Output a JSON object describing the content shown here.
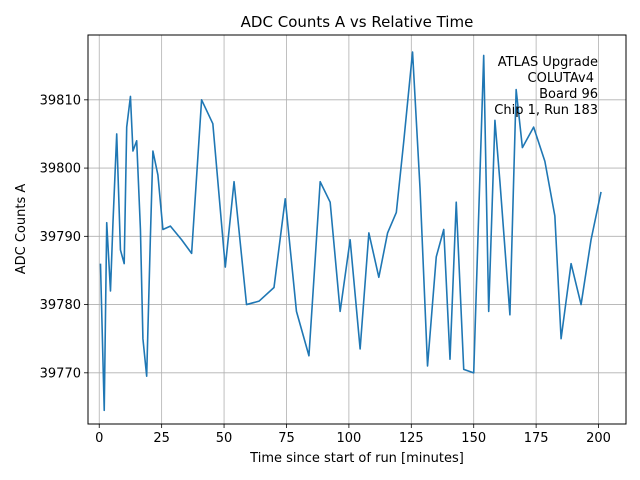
{
  "chart_data": {
    "type": "line",
    "title": "ADC Counts A vs Relative Time",
    "xlabel": "Time since start of run [minutes]",
    "ylabel": "ADC Counts A",
    "xlim": [
      -4.5,
      211
    ],
    "ylim": [
      39762.5,
      39819.5
    ],
    "xticks": [
      0,
      25,
      50,
      75,
      100,
      125,
      150,
      175,
      200
    ],
    "yticks": [
      39770,
      39780,
      39790,
      39800,
      39810
    ],
    "grid": true,
    "series_color": "#1f77b4",
    "annotation": [
      "ATLAS Upgrade",
      "COLUTAv4",
      "Board 96",
      "Chip 1, Run 183"
    ],
    "series": [
      {
        "x": [
          0.5,
          2.0,
          3.0,
          4.5,
          5.5,
          7.0,
          8.5,
          10.0,
          11.0,
          12.5,
          13.5,
          15.0,
          16.5,
          17.5,
          19.0,
          20.5,
          21.5,
          23.5,
          25.5,
          28.5,
          33.0,
          37.0,
          41.0,
          45.5,
          50.5,
          54.0,
          59.0,
          64.0,
          70.0,
          74.5,
          79.0,
          84.0,
          88.5,
          92.5,
          96.5,
          100.5,
          104.5,
          108.0,
          112.0,
          115.5,
          119.0,
          122.0,
          125.5,
          128.5,
          131.5,
          135.0,
          138.0,
          140.5,
          143.0,
          146.0,
          150.0,
          154.0,
          156.0,
          158.5,
          160.5,
          164.5,
          167.0,
          169.5,
          174.0,
          178.5,
          182.5,
          185.0,
          189.0,
          193.0,
          197.0,
          201.0
        ],
        "y": [
          39786.0,
          39764.5,
          39792.0,
          39782.0,
          39792.0,
          39805.0,
          39788.0,
          39786.0,
          39806.0,
          39810.5,
          39802.5,
          39804.0,
          39791.0,
          39775.0,
          39769.5,
          39790.0,
          39802.5,
          39799.0,
          39791.0,
          39791.5,
          39789.5,
          39787.5,
          39810.0,
          39806.5,
          39785.5,
          39798.0,
          39780.0,
          39780.5,
          39782.5,
          39795.5,
          39779.0,
          39772.5,
          39798.0,
          39795.0,
          39779.0,
          39789.5,
          39773.5,
          39790.5,
          39784.0,
          39790.5,
          39793.5,
          39804.0,
          39817.0,
          39797.0,
          39771.0,
          39787.0,
          39791.0,
          39772.0,
          39795.0,
          39770.5,
          39770.0,
          39816.5,
          39779.0,
          39807.0,
          39798.0,
          39778.5,
          39811.5,
          39803.0,
          39806.0,
          39801.0,
          39793.0,
          39775.0,
          39786.0,
          39780.0,
          39789.5,
          39796.5
        ]
      }
    ]
  }
}
